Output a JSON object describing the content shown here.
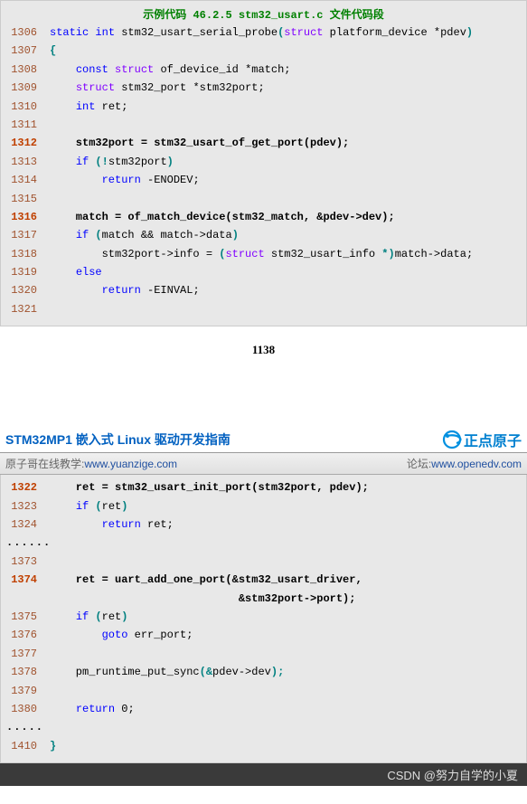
{
  "block1": {
    "title": "示例代码 46.2.5 stm32_usart.c 文件代码段",
    "lines": [
      {
        "no": "1306",
        "bold": false,
        "spans": [
          {
            "t": "static",
            "c": "kw"
          },
          {
            "t": " "
          },
          {
            "t": "int",
            "c": "kw"
          },
          {
            "t": " stm32_usart_serial_probe",
            "c": "func"
          },
          {
            "t": "(",
            "c": "paren"
          },
          {
            "t": "struct",
            "c": "type"
          },
          {
            "t": " platform_device ",
            "c": "func"
          },
          {
            "t": "*",
            "c": "op"
          },
          {
            "t": "pdev",
            "c": "func"
          },
          {
            "t": ")",
            "c": "paren"
          }
        ]
      },
      {
        "no": "1307",
        "bold": false,
        "spans": [
          {
            "t": "{",
            "c": "paren"
          }
        ]
      },
      {
        "no": "1308",
        "bold": false,
        "spans": [
          {
            "t": "    "
          },
          {
            "t": "const",
            "c": "kw"
          },
          {
            "t": " "
          },
          {
            "t": "struct",
            "c": "type"
          },
          {
            "t": " of_device_id ",
            "c": "func"
          },
          {
            "t": "*",
            "c": "op"
          },
          {
            "t": "match",
            "c": "func"
          },
          {
            "t": ";",
            "c": "op"
          }
        ]
      },
      {
        "no": "1309",
        "bold": false,
        "spans": [
          {
            "t": "    "
          },
          {
            "t": "struct",
            "c": "type"
          },
          {
            "t": " stm32_port ",
            "c": "func"
          },
          {
            "t": "*",
            "c": "op"
          },
          {
            "t": "stm32port",
            "c": "func"
          },
          {
            "t": ";",
            "c": "op"
          }
        ]
      },
      {
        "no": "1310",
        "bold": false,
        "spans": [
          {
            "t": "    "
          },
          {
            "t": "int",
            "c": "kw"
          },
          {
            "t": " ret",
            "c": "func"
          },
          {
            "t": ";",
            "c": "op"
          }
        ]
      },
      {
        "no": "1311",
        "bold": false,
        "spans": [
          {
            "t": " "
          }
        ]
      },
      {
        "no": "1312",
        "bold": true,
        "spans": [
          {
            "t": "    stm32port = stm32_usart_of_get_port(pdev);",
            "c": "bold-code"
          }
        ]
      },
      {
        "no": "1313",
        "bold": false,
        "spans": [
          {
            "t": "    "
          },
          {
            "t": "if",
            "c": "kw"
          },
          {
            "t": " "
          },
          {
            "t": "(!",
            "c": "paren"
          },
          {
            "t": "stm32port",
            "c": "func"
          },
          {
            "t": ")",
            "c": "paren"
          }
        ]
      },
      {
        "no": "1314",
        "bold": false,
        "spans": [
          {
            "t": "        "
          },
          {
            "t": "return",
            "c": "kw"
          },
          {
            "t": " ",
            "c": "func"
          },
          {
            "t": "-",
            "c": "op"
          },
          {
            "t": "ENODEV",
            "c": "func"
          },
          {
            "t": ";",
            "c": "op"
          }
        ]
      },
      {
        "no": "1315",
        "bold": false,
        "spans": [
          {
            "t": " "
          }
        ]
      },
      {
        "no": "1316",
        "bold": true,
        "spans": [
          {
            "t": "    match = of_match_device(stm32_match, &pdev->dev);",
            "c": "bold-code"
          }
        ]
      },
      {
        "no": "1317",
        "bold": false,
        "spans": [
          {
            "t": "    "
          },
          {
            "t": "if",
            "c": "kw"
          },
          {
            "t": " "
          },
          {
            "t": "(",
            "c": "paren"
          },
          {
            "t": "match ",
            "c": "func"
          },
          {
            "t": "&&",
            "c": "op"
          },
          {
            "t": " match",
            "c": "func"
          },
          {
            "t": "->",
            "c": "op"
          },
          {
            "t": "data",
            "c": "func"
          },
          {
            "t": ")",
            "c": "paren"
          }
        ]
      },
      {
        "no": "1318",
        "bold": false,
        "spans": [
          {
            "t": "        stm32port",
            "c": "func"
          },
          {
            "t": "->",
            "c": "op"
          },
          {
            "t": "info ",
            "c": "func"
          },
          {
            "t": "=",
            "c": "op"
          },
          {
            "t": " ",
            "c": "func"
          },
          {
            "t": "(",
            "c": "paren"
          },
          {
            "t": "struct",
            "c": "type"
          },
          {
            "t": " stm32_usart_info ",
            "c": "func"
          },
          {
            "t": "*)",
            "c": "paren"
          },
          {
            "t": "match",
            "c": "func"
          },
          {
            "t": "->",
            "c": "op"
          },
          {
            "t": "data",
            "c": "func"
          },
          {
            "t": ";",
            "c": "op"
          }
        ]
      },
      {
        "no": "1319",
        "bold": false,
        "spans": [
          {
            "t": "    "
          },
          {
            "t": "else",
            "c": "kw"
          }
        ]
      },
      {
        "no": "1320",
        "bold": false,
        "spans": [
          {
            "t": "        "
          },
          {
            "t": "return",
            "c": "kw"
          },
          {
            "t": " ",
            "c": "func"
          },
          {
            "t": "-",
            "c": "op"
          },
          {
            "t": "EINVAL",
            "c": "func"
          },
          {
            "t": ";",
            "c": "op"
          }
        ]
      },
      {
        "no": "1321",
        "bold": false,
        "spans": [
          {
            "t": " "
          }
        ]
      }
    ]
  },
  "page_num": "1138",
  "header": {
    "doc_title": "STM32MP1 嵌入式 Linux 驱动开发指南",
    "logo_text": "正点原子",
    "left_label": "原子哥在线教学:",
    "left_link": "www.yuanzige.com",
    "right_label": "论坛:",
    "right_link": "www.openedv.com"
  },
  "block2": {
    "lines": [
      {
        "no": "1322",
        "bold": true,
        "spans": [
          {
            "t": "    ret = stm32_usart_init_port(stm32port, pdev);",
            "c": "bold-code"
          }
        ]
      },
      {
        "no": "1323",
        "bold": false,
        "spans": [
          {
            "t": "    "
          },
          {
            "t": "if",
            "c": "kw"
          },
          {
            "t": " "
          },
          {
            "t": "(",
            "c": "paren"
          },
          {
            "t": "ret",
            "c": "func"
          },
          {
            "t": ")",
            "c": "paren"
          }
        ]
      },
      {
        "no": "1324",
        "bold": false,
        "spans": [
          {
            "t": "        "
          },
          {
            "t": "return",
            "c": "kw"
          },
          {
            "t": " ret",
            "c": "func"
          },
          {
            "t": ";",
            "c": "op"
          }
        ]
      },
      {
        "no": "......",
        "bold": false,
        "dots": true,
        "spans": []
      },
      {
        "no": "1373",
        "bold": false,
        "spans": [
          {
            "t": " "
          }
        ]
      },
      {
        "no": "1374",
        "bold": true,
        "spans": [
          {
            "t": "    ret = uart_add_one_port(&stm32_usart_driver,",
            "c": "bold-code"
          }
        ]
      },
      {
        "no": "",
        "bold": true,
        "spans": [
          {
            "t": "                             &stm32port->port);",
            "c": "bold-code"
          }
        ]
      },
      {
        "no": "1375",
        "bold": false,
        "spans": [
          {
            "t": "    "
          },
          {
            "t": "if",
            "c": "kw"
          },
          {
            "t": " "
          },
          {
            "t": "(",
            "c": "paren"
          },
          {
            "t": "ret",
            "c": "func"
          },
          {
            "t": ")",
            "c": "paren"
          }
        ]
      },
      {
        "no": "1376",
        "bold": false,
        "spans": [
          {
            "t": "        "
          },
          {
            "t": "goto",
            "c": "kw"
          },
          {
            "t": " err_port",
            "c": "func"
          },
          {
            "t": ";",
            "c": "op"
          }
        ]
      },
      {
        "no": "1377",
        "bold": false,
        "spans": [
          {
            "t": " "
          }
        ]
      },
      {
        "no": "1378",
        "bold": false,
        "spans": [
          {
            "t": "    pm_runtime_put_sync",
            "c": "func"
          },
          {
            "t": "(&",
            "c": "paren"
          },
          {
            "t": "pdev",
            "c": "func"
          },
          {
            "t": "->",
            "c": "op"
          },
          {
            "t": "dev",
            "c": "func"
          },
          {
            "t": ");",
            "c": "paren"
          }
        ]
      },
      {
        "no": "1379",
        "bold": false,
        "spans": [
          {
            "t": " "
          }
        ]
      },
      {
        "no": "1380",
        "bold": false,
        "spans": [
          {
            "t": "    "
          },
          {
            "t": "return",
            "c": "kw"
          },
          {
            "t": " "
          },
          {
            "t": "0",
            "c": "num"
          },
          {
            "t": ";",
            "c": "op"
          }
        ]
      },
      {
        "no": ".....",
        "bold": false,
        "dots": true,
        "spans": []
      },
      {
        "no": "1410",
        "bold": false,
        "spans": [
          {
            "t": "}",
            "c": "paren"
          }
        ]
      }
    ]
  },
  "watermark": "CSDN @努力自学的小夏"
}
